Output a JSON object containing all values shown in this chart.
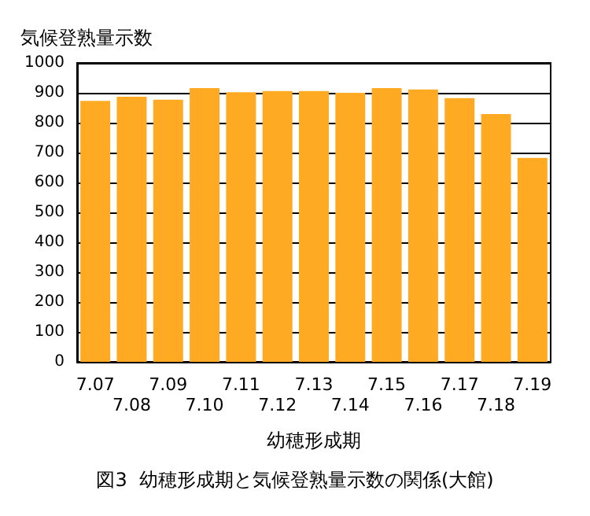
{
  "chart_data": {
    "type": "bar",
    "title": "図3  幼穂形成期と気候登熟量示数の関係(大館)",
    "ylabel": "気候登熟量示数",
    "xlabel": "幼穂形成期",
    "categories": [
      "7.07",
      "7.08",
      "7.09",
      "7.10",
      "7.11",
      "7.12",
      "7.13",
      "7.14",
      "7.15",
      "7.16",
      "7.17",
      "7.18",
      "7.19"
    ],
    "values": [
      873,
      887,
      877,
      916,
      902,
      906,
      906,
      900,
      916,
      911,
      882,
      829,
      682
    ],
    "color": "#ffaa22",
    "ylim": [
      0,
      1000
    ],
    "yticks": [
      0,
      100,
      200,
      300,
      400,
      500,
      600,
      700,
      800,
      900,
      1000
    ],
    "grid": "y"
  }
}
